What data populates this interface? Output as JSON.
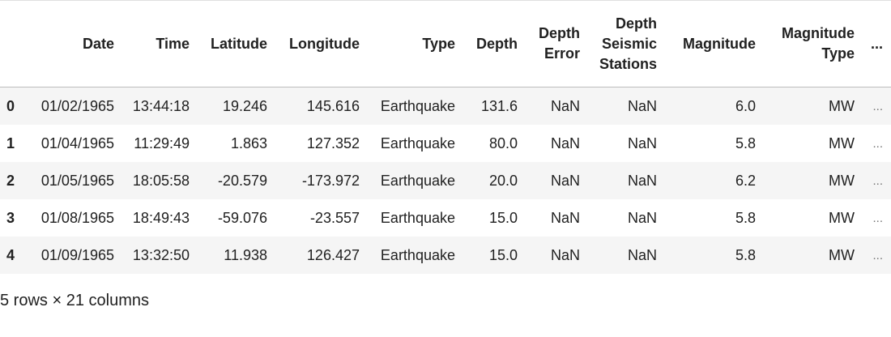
{
  "table": {
    "columns": [
      "Date",
      "Time",
      "Latitude",
      "Longitude",
      "Type",
      "Depth",
      "Depth Error",
      "Depth Seismic Stations",
      "Magnitude",
      "Magnitude Type",
      "..."
    ],
    "rows": [
      {
        "index": "0",
        "cells": [
          "01/02/1965",
          "13:44:18",
          "19.246",
          "145.616",
          "Earthquake",
          "131.6",
          "NaN",
          "NaN",
          "6.0",
          "MW",
          "..."
        ]
      },
      {
        "index": "1",
        "cells": [
          "01/04/1965",
          "11:29:49",
          "1.863",
          "127.352",
          "Earthquake",
          "80.0",
          "NaN",
          "NaN",
          "5.8",
          "MW",
          "..."
        ]
      },
      {
        "index": "2",
        "cells": [
          "01/05/1965",
          "18:05:58",
          "-20.579",
          "-173.972",
          "Earthquake",
          "20.0",
          "NaN",
          "NaN",
          "6.2",
          "MW",
          "..."
        ]
      },
      {
        "index": "3",
        "cells": [
          "01/08/1965",
          "18:49:43",
          "-59.076",
          "-23.557",
          "Earthquake",
          "15.0",
          "NaN",
          "NaN",
          "5.8",
          "MW",
          "..."
        ]
      },
      {
        "index": "4",
        "cells": [
          "01/09/1965",
          "13:32:50",
          "11.938",
          "126.427",
          "Earthquake",
          "15.0",
          "NaN",
          "NaN",
          "5.8",
          "MW",
          "..."
        ]
      }
    ]
  },
  "footer": "5 rows × 21 columns"
}
